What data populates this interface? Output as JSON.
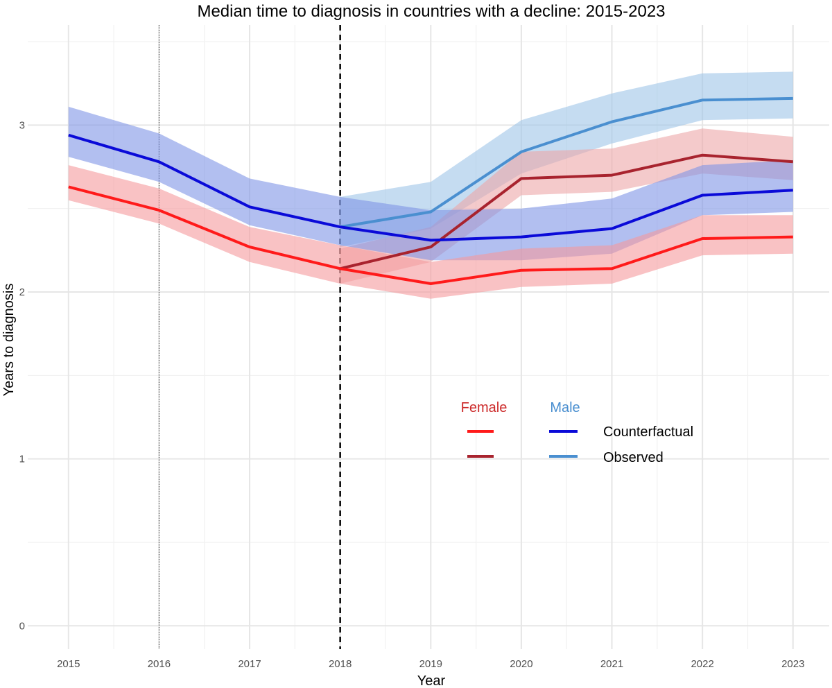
{
  "chart_data": {
    "type": "line",
    "title": "Median time to diagnosis in countries with a decline: 2015-2023",
    "xlabel": "Year",
    "ylabel": "Years to diagnosis",
    "xlim": [
      2014.55,
      2023.4
    ],
    "ylim": [
      -0.14,
      3.6
    ],
    "x_ticks": [
      "2015",
      "2016",
      "2017",
      "2018",
      "2019",
      "2020",
      "2021",
      "2022",
      "2023"
    ],
    "y_ticks": [
      "0",
      "1",
      "2",
      "3"
    ],
    "grid": true,
    "reference_lines": [
      {
        "name": "dotted-reference-line",
        "x": 2016,
        "style": "dotted"
      },
      {
        "name": "dashed-reference-line",
        "x": 2018,
        "style": "dashed"
      }
    ],
    "series": [
      {
        "key": "male-observed",
        "name": "Male Observed",
        "color": "#4a8fd0",
        "band_color": "#9ec4e8",
        "x": [
          2018,
          2019,
          2020,
          2021,
          2022,
          2023
        ],
        "values": [
          2.39,
          2.48,
          2.84,
          3.02,
          3.15,
          3.16
        ],
        "lower": [
          2.27,
          2.38,
          2.71,
          2.89,
          3.03,
          3.04
        ],
        "upper": [
          2.57,
          2.66,
          3.03,
          3.19,
          3.31,
          3.32
        ]
      },
      {
        "key": "female-observed",
        "name": "Female Observed",
        "color": "#a8232e",
        "band_color": "#eda7a9",
        "x": [
          2018,
          2019,
          2020,
          2021,
          2022,
          2023
        ],
        "values": [
          2.14,
          2.27,
          2.68,
          2.7,
          2.82,
          2.78
        ],
        "lower": [
          2.05,
          2.18,
          2.58,
          2.6,
          2.71,
          2.67
        ],
        "upper": [
          2.26,
          2.39,
          2.84,
          2.86,
          2.98,
          2.93
        ]
      },
      {
        "key": "male-counterfactual",
        "name": "Male Counterfactual",
        "color": "#0a0ad8",
        "band_color": "#7f95e6",
        "x": [
          2015,
          2016,
          2017,
          2018,
          2019,
          2020,
          2021,
          2022,
          2023
        ],
        "values": [
          2.94,
          2.78,
          2.51,
          2.39,
          2.31,
          2.33,
          2.38,
          2.58,
          2.61
        ],
        "lower": [
          2.81,
          2.66,
          2.4,
          2.28,
          2.19,
          2.19,
          2.23,
          2.46,
          2.48
        ],
        "upper": [
          3.11,
          2.95,
          2.68,
          2.57,
          2.49,
          2.5,
          2.56,
          2.76,
          2.79
        ]
      },
      {
        "key": "female-counterfactual",
        "name": "Female Counterfactual",
        "color": "#ff1a1a",
        "band_color": "#f59a9c",
        "x": [
          2015,
          2016,
          2017,
          2018,
          2019,
          2020,
          2021,
          2022,
          2023
        ],
        "values": [
          2.63,
          2.49,
          2.27,
          2.14,
          2.05,
          2.13,
          2.14,
          2.32,
          2.33
        ],
        "lower": [
          2.55,
          2.41,
          2.18,
          2.05,
          1.96,
          2.03,
          2.05,
          2.22,
          2.23
        ],
        "upper": [
          2.76,
          2.62,
          2.39,
          2.28,
          2.18,
          2.26,
          2.28,
          2.46,
          2.46
        ]
      }
    ],
    "legend": {
      "placement": "center-right",
      "headings": [
        {
          "text": "Female",
          "color": "#cc2a2a"
        },
        {
          "text": "Male",
          "color": "#4a8fd0"
        }
      ],
      "rows": [
        {
          "label": "Counterfactual",
          "female_color": "#ff1a1a",
          "male_color": "#0a0ad8"
        },
        {
          "label": "Observed",
          "female_color": "#a8232e",
          "male_color": "#4a8fd0"
        }
      ]
    }
  }
}
